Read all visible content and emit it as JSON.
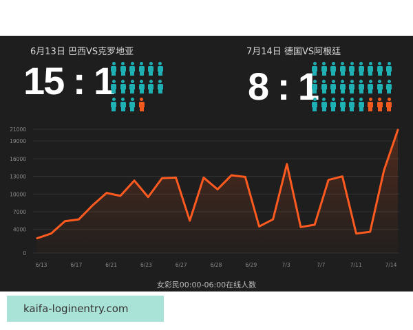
{
  "matches": [
    {
      "title": "6月13日 巴西VS克罗地亚",
      "score": "15 : 1",
      "teal_count": 15,
      "orange_count": 1
    },
    {
      "title": "7月14日 德国VS阿根廷",
      "score": "8 : 1",
      "teal_count": 24,
      "orange_count": 3
    }
  ],
  "colors": {
    "teal": "#1fb0b4",
    "orange": "#f05a1e",
    "line": "#ff5a1f",
    "panel": "#1e1e1e"
  },
  "icon_name": "person-icon",
  "chart_data": {
    "type": "line",
    "xlabel": "女彩民00:00-06:00在线人数",
    "ylabel": "",
    "ylim": [
      0,
      21000
    ],
    "yticks": [
      0,
      4000,
      7000,
      10000,
      13000,
      16000,
      19000,
      21000
    ],
    "xtick_labels": [
      "6/13",
      "6/17",
      "6/21",
      "6/23",
      "6/27",
      "6/28",
      "6/29",
      "7/3",
      "7/7",
      "7/11",
      "7/14"
    ],
    "grid": true,
    "series": [
      {
        "values": [
          2500,
          3300,
          5400,
          5700,
          8100,
          10200,
          9700,
          12300,
          9500,
          12700,
          12800,
          5500,
          12800,
          10800,
          13200,
          12900,
          4500,
          5700,
          15100,
          4400,
          4800,
          12400,
          13000,
          3300,
          3600,
          14000,
          20900
        ]
      }
    ]
  },
  "watermark": "kaifa-loginentry.com"
}
